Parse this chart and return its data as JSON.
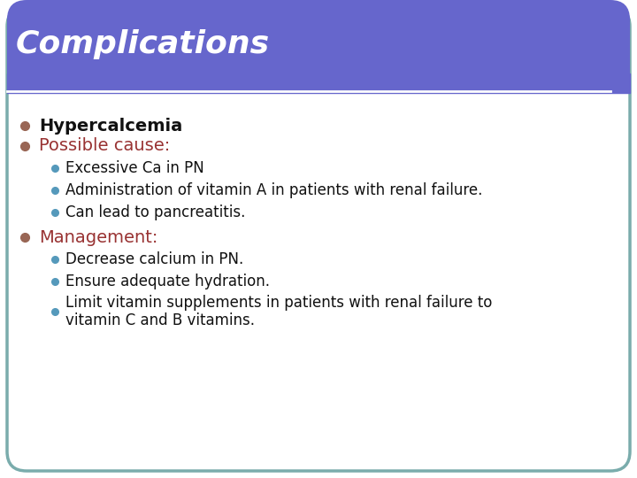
{
  "title": "Complications",
  "title_color": "#ffffff",
  "title_bg_color": "#6666cc",
  "slide_bg_color": "#ffffff",
  "border_color": "#7aacac",
  "bullet1_text": "Hypercalcemia",
  "bullet1_color": "#111111",
  "bullet2_text": "Possible cause:",
  "bullet2_color": "#993333",
  "sub_bullets_cause": [
    "Excessive Ca in PN",
    "Administration of vitamin A in patients with renal failure.",
    "Can lead to pancreatitis."
  ],
  "bullet3_text": "Management:",
  "bullet3_color": "#993333",
  "sub_bullets_management": [
    "Decrease calcium in PN.",
    "Ensure adequate hydration.",
    "Limit vitamin supplements in patients with renal failure to\nvitamin C and B vitamins."
  ],
  "sub_bullet_color": "#111111",
  "main_bullet_color": "#996655",
  "sub_dot_color": "#5599bb",
  "figwidth": 7.2,
  "figheight": 5.4,
  "dpi": 100
}
